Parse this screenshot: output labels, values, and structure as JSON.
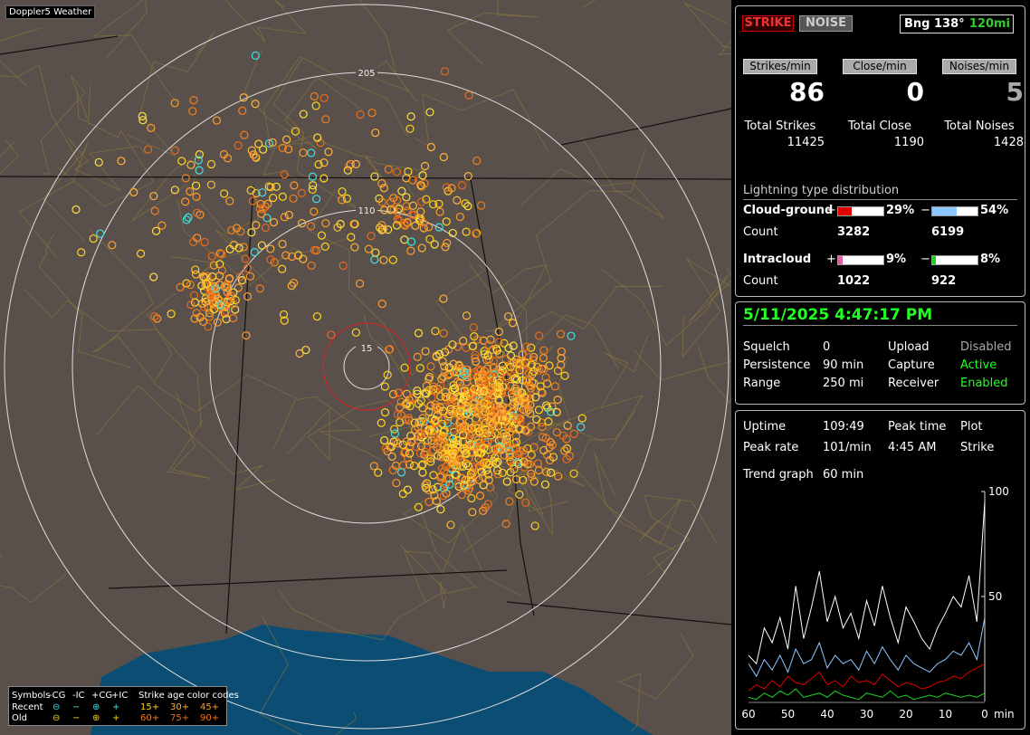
{
  "map": {
    "title": "Doppler5 Weather",
    "ring_labels": [
      "205",
      "110",
      "15"
    ],
    "legend": {
      "symbols_label": "Symbols",
      "columns": [
        "-CG",
        "-IC",
        "+CG",
        "+IC"
      ],
      "age_title": "Strike age color codes",
      "rows": [
        {
          "label": "Recent",
          "symbols": [
            "⊖",
            "−",
            "⊕",
            "+"
          ],
          "ages": [
            "15+",
            "30+",
            "45+"
          ]
        },
        {
          "label": "Old",
          "symbols": [
            "⊖",
            "−",
            "⊕",
            "+"
          ],
          "ages": [
            "60+",
            "75+",
            "90+"
          ]
        }
      ]
    }
  },
  "panel": {
    "buttons": [
      "STRIKE",
      "NOISE"
    ],
    "bearing": "Bng 138°",
    "distance": "120mi",
    "rates": [
      {
        "label": "Strikes/min",
        "value": 86,
        "total_label": "Total Strikes",
        "total": 11425
      },
      {
        "label": "Close/min",
        "value": 0,
        "total_label": "Total Close",
        "total": 1190
      },
      {
        "label": "Noises/min",
        "value": 5,
        "total_label": "Total Noises",
        "total": 1428
      }
    ],
    "distribution": {
      "title": "Lightning type distribution",
      "rows": [
        {
          "label": "Cloud-ground",
          "pos_sign": "+",
          "pos": {
            "value": 29,
            "label": "29%"
          },
          "pos_color": "#e00000",
          "neg_sign": "−",
          "neg": {
            "value": 54,
            "label": "54%"
          },
          "neg_color": "#8cc8ff",
          "count_label": "Count",
          "pos_count": 3282,
          "neg_count": 6199
        },
        {
          "label": "Intracloud",
          "pos_sign": "+",
          "pos": {
            "value": 9,
            "label": "9%"
          },
          "pos_color": "#e060a8",
          "neg_sign": "−",
          "neg": {
            "value": 8,
            "label": "8%"
          },
          "neg_color": "#20d020",
          "count_label": "Count",
          "pos_count": 1022,
          "neg_count": 922
        }
      ]
    },
    "datetime": "5/11/2025 4:47:17 PM",
    "settings": [
      [
        "Squelch",
        "0",
        "Upload",
        "Disabled"
      ],
      [
        "Persistence",
        "90 min",
        "Capture",
        "Active"
      ],
      [
        "Range",
        "250 mi",
        "Receiver",
        "Enabled"
      ]
    ],
    "uptime": {
      "label": "Uptime",
      "value": "109:49"
    },
    "peak_rate": {
      "label": "Peak rate",
      "value": "101/min"
    },
    "peak_time": {
      "label": "Peak time",
      "value": "4:45 AM"
    },
    "plot": {
      "label": "Plot",
      "value": "Strike"
    },
    "trend_graph": {
      "label": "Trend graph",
      "value": "60 min"
    },
    "trend": {
      "type": "line",
      "ylim": [
        0,
        100
      ],
      "yticks": [
        50,
        100
      ],
      "xlim": [
        60,
        0
      ],
      "xticks": [
        60,
        50,
        40,
        30,
        20,
        10,
        0
      ],
      "x_unit": "min",
      "x": [
        60,
        58,
        56,
        54,
        52,
        50,
        48,
        46,
        44,
        42,
        40,
        38,
        36,
        34,
        32,
        30,
        28,
        26,
        24,
        22,
        20,
        18,
        16,
        14,
        12,
        10,
        8,
        6,
        4,
        2,
        0
      ],
      "series": [
        {
          "color": "#ffffff",
          "values": [
            22,
            18,
            35,
            28,
            40,
            25,
            55,
            30,
            45,
            62,
            38,
            50,
            35,
            42,
            30,
            48,
            36,
            55,
            40,
            28,
            45,
            38,
            30,
            25,
            35,
            42,
            50,
            45,
            60,
            38,
            95
          ]
        },
        {
          "color": "#8cc8ff",
          "values": [
            18,
            12,
            20,
            15,
            22,
            14,
            25,
            18,
            20,
            28,
            16,
            22,
            18,
            20,
            15,
            24,
            18,
            26,
            20,
            15,
            22,
            18,
            16,
            14,
            18,
            20,
            24,
            22,
            28,
            20,
            40
          ]
        },
        {
          "color": "#e00000",
          "values": [
            5,
            8,
            6,
            10,
            7,
            12,
            9,
            8,
            11,
            14,
            8,
            10,
            7,
            12,
            9,
            10,
            8,
            13,
            10,
            7,
            9,
            8,
            6,
            7,
            9,
            10,
            12,
            11,
            14,
            16,
            18
          ]
        },
        {
          "color": "#20d020",
          "values": [
            2,
            1,
            4,
            2,
            5,
            3,
            6,
            2,
            3,
            4,
            2,
            5,
            3,
            2,
            1,
            4,
            3,
            2,
            5,
            2,
            3,
            1,
            2,
            3,
            2,
            4,
            3,
            2,
            3,
            2,
            4
          ]
        }
      ]
    }
  }
}
